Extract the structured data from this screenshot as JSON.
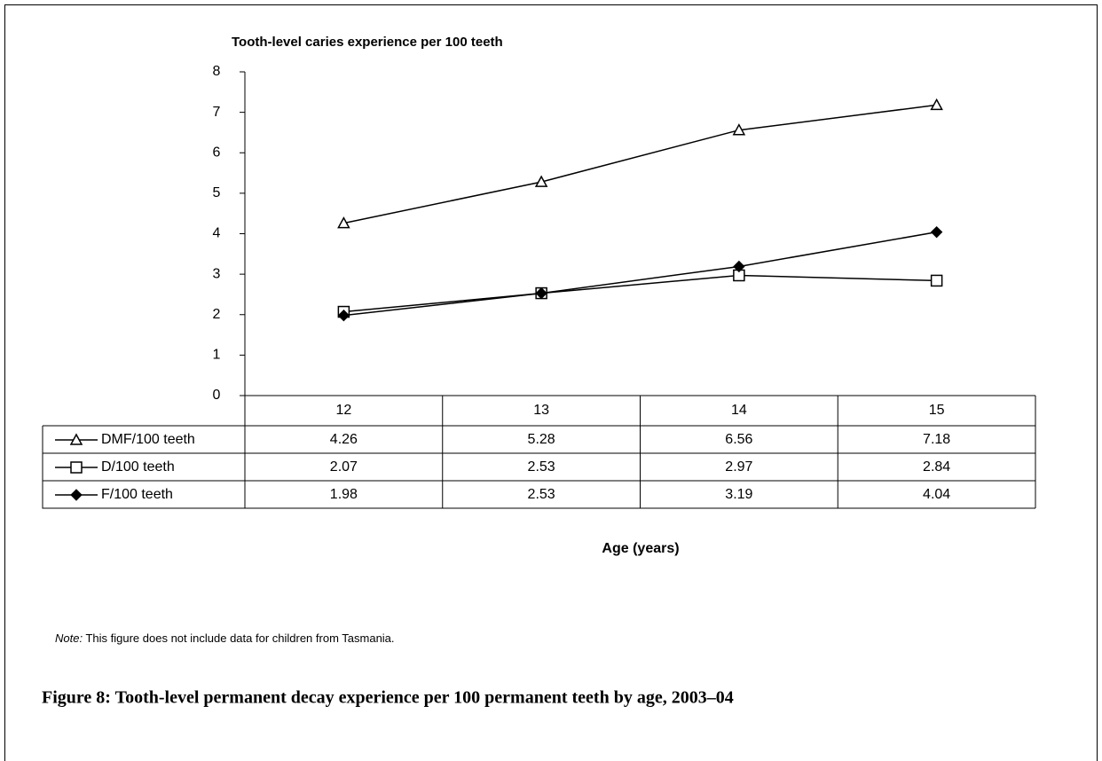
{
  "chart_data": {
    "type": "line",
    "title": "Tooth-level caries experience per 100 teeth",
    "x_label": "Age (years)",
    "categories": [
      "12",
      "13",
      "14",
      "15"
    ],
    "series": [
      {
        "name": "DMF/100 teeth",
        "color": "#000000",
        "marker": "triangle",
        "values": [
          4.26,
          5.28,
          6.56,
          7.18
        ]
      },
      {
        "name": "D/100 teeth",
        "color": "#000000",
        "marker": "square",
        "values": [
          2.07,
          2.53,
          2.97,
          2.84
        ]
      },
      {
        "name": "F/100 teeth",
        "color": "#000000",
        "marker": "diamond",
        "values": [
          1.98,
          2.53,
          3.19,
          4.04
        ]
      }
    ],
    "ylim": [
      0,
      8
    ],
    "yticks": [
      0,
      1,
      2,
      3,
      4,
      5,
      6,
      7,
      8
    ],
    "grid": false,
    "data_table": true
  },
  "note": {
    "label": "Note:",
    "text": "This figure does not include data for children from Tasmania."
  },
  "caption": "Figure 8: Tooth-level permanent decay experience per 100 permanent teeth by age, 2003–04"
}
